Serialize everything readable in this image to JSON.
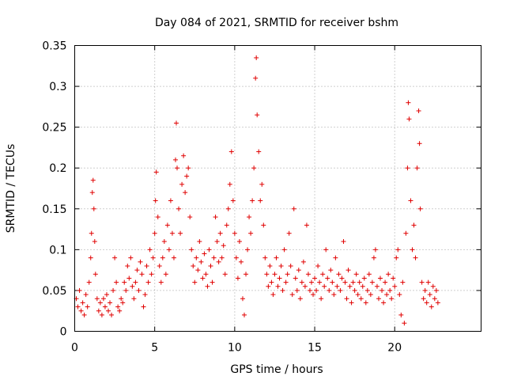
{
  "chart_data": {
    "type": "scatter",
    "title": "Day 084 of 2021, SRMTID for receiver bshm",
    "xlabel": "GPS time / hours",
    "ylabel": "SRMTID / TECUs",
    "xlim": [
      0,
      25.4
    ],
    "ylim": [
      0,
      0.35
    ],
    "xticks": [
      0,
      5,
      10,
      15,
      20
    ],
    "xtick_labels": [
      "0",
      "5",
      "10",
      "15",
      "20"
    ],
    "yticks": [
      0,
      0.05,
      0.1,
      0.15,
      0.2,
      0.25,
      0.3,
      0.35
    ],
    "ytick_labels": [
      "0",
      "0.05",
      "0.1",
      "0.15",
      "0.2",
      "0.25",
      "0.3",
      "0.35"
    ],
    "grid": true,
    "marker": "plus",
    "color": "#e00000",
    "series": [
      {
        "name": "SRMTID",
        "points": [
          [
            0.1,
            0.04
          ],
          [
            0.2,
            0.03
          ],
          [
            0.3,
            0.05
          ],
          [
            0.4,
            0.025
          ],
          [
            0.5,
            0.035
          ],
          [
            0.6,
            0.02
          ],
          [
            0.7,
            0.045
          ],
          [
            0.8,
            0.03
          ],
          [
            0.9,
            0.06
          ],
          [
            1.0,
            0.09
          ],
          [
            1.05,
            0.12
          ],
          [
            1.1,
            0.17
          ],
          [
            1.15,
            0.185
          ],
          [
            1.2,
            0.15
          ],
          [
            1.25,
            0.11
          ],
          [
            1.3,
            0.07
          ],
          [
            1.4,
            0.04
          ],
          [
            1.5,
            0.025
          ],
          [
            1.6,
            0.035
          ],
          [
            1.7,
            0.02
          ],
          [
            1.8,
            0.04
          ],
          [
            1.9,
            0.03
          ],
          [
            2.0,
            0.045
          ],
          [
            2.1,
            0.025
          ],
          [
            2.2,
            0.035
          ],
          [
            2.3,
            0.02
          ],
          [
            2.4,
            0.05
          ],
          [
            2.5,
            0.09
          ],
          [
            2.6,
            0.06
          ],
          [
            2.7,
            0.03
          ],
          [
            2.8,
            0.025
          ],
          [
            2.9,
            0.04
          ],
          [
            3.0,
            0.035
          ],
          [
            3.1,
            0.06
          ],
          [
            3.2,
            0.05
          ],
          [
            3.3,
            0.08
          ],
          [
            3.4,
            0.065
          ],
          [
            3.5,
            0.09
          ],
          [
            3.6,
            0.055
          ],
          [
            3.7,
            0.04
          ],
          [
            3.8,
            0.06
          ],
          [
            3.9,
            0.075
          ],
          [
            4.0,
            0.05
          ],
          [
            4.1,
            0.085
          ],
          [
            4.2,
            0.07
          ],
          [
            4.3,
            0.03
          ],
          [
            4.4,
            0.045
          ],
          [
            4.5,
            0.08
          ],
          [
            4.6,
            0.06
          ],
          [
            4.7,
            0.1
          ],
          [
            4.8,
            0.07
          ],
          [
            4.9,
            0.09
          ],
          [
            5.0,
            0.12
          ],
          [
            5.05,
            0.16
          ],
          [
            5.1,
            0.195
          ],
          [
            5.2,
            0.14
          ],
          [
            5.3,
            0.08
          ],
          [
            5.4,
            0.06
          ],
          [
            5.5,
            0.09
          ],
          [
            5.6,
            0.11
          ],
          [
            5.7,
            0.07
          ],
          [
            5.8,
            0.13
          ],
          [
            5.9,
            0.1
          ],
          [
            6.0,
            0.16
          ],
          [
            6.1,
            0.12
          ],
          [
            6.2,
            0.09
          ],
          [
            6.3,
            0.21
          ],
          [
            6.35,
            0.255
          ],
          [
            6.4,
            0.2
          ],
          [
            6.5,
            0.15
          ],
          [
            6.6,
            0.12
          ],
          [
            6.7,
            0.18
          ],
          [
            6.8,
            0.215
          ],
          [
            6.9,
            0.17
          ],
          [
            7.0,
            0.19
          ],
          [
            7.1,
            0.2
          ],
          [
            7.2,
            0.14
          ],
          [
            7.3,
            0.1
          ],
          [
            7.4,
            0.08
          ],
          [
            7.5,
            0.06
          ],
          [
            7.6,
            0.09
          ],
          [
            7.7,
            0.075
          ],
          [
            7.8,
            0.11
          ],
          [
            7.9,
            0.085
          ],
          [
            8.0,
            0.065
          ],
          [
            8.1,
            0.095
          ],
          [
            8.2,
            0.07
          ],
          [
            8.3,
            0.055
          ],
          [
            8.4,
            0.1
          ],
          [
            8.5,
            0.08
          ],
          [
            8.6,
            0.06
          ],
          [
            8.7,
            0.09
          ],
          [
            8.8,
            0.14
          ],
          [
            8.9,
            0.11
          ],
          [
            9.0,
            0.085
          ],
          [
            9.1,
            0.12
          ],
          [
            9.2,
            0.09
          ],
          [
            9.3,
            0.105
          ],
          [
            9.4,
            0.07
          ],
          [
            9.5,
            0.13
          ],
          [
            9.6,
            0.15
          ],
          [
            9.7,
            0.18
          ],
          [
            9.8,
            0.22
          ],
          [
            9.9,
            0.16
          ],
          [
            10.0,
            0.12
          ],
          [
            10.1,
            0.09
          ],
          [
            10.2,
            0.065
          ],
          [
            10.3,
            0.11
          ],
          [
            10.4,
            0.085
          ],
          [
            10.5,
            0.04
          ],
          [
            10.6,
            0.02
          ],
          [
            10.7,
            0.07
          ],
          [
            10.8,
            0.1
          ],
          [
            10.9,
            0.14
          ],
          [
            11.0,
            0.12
          ],
          [
            11.1,
            0.16
          ],
          [
            11.2,
            0.2
          ],
          [
            11.3,
            0.31
          ],
          [
            11.35,
            0.335
          ],
          [
            11.4,
            0.265
          ],
          [
            11.5,
            0.22
          ],
          [
            11.6,
            0.16
          ],
          [
            11.7,
            0.18
          ],
          [
            11.8,
            0.13
          ],
          [
            11.9,
            0.09
          ],
          [
            12.0,
            0.07
          ],
          [
            12.1,
            0.055
          ],
          [
            12.2,
            0.08
          ],
          [
            12.3,
            0.06
          ],
          [
            12.4,
            0.045
          ],
          [
            12.5,
            0.07
          ],
          [
            12.6,
            0.09
          ],
          [
            12.7,
            0.055
          ],
          [
            12.8,
            0.065
          ],
          [
            12.9,
            0.08
          ],
          [
            13.0,
            0.05
          ],
          [
            13.1,
            0.1
          ],
          [
            13.2,
            0.06
          ],
          [
            13.3,
            0.07
          ],
          [
            13.4,
            0.12
          ],
          [
            13.5,
            0.08
          ],
          [
            13.6,
            0.045
          ],
          [
            13.7,
            0.15
          ],
          [
            13.8,
            0.065
          ],
          [
            13.9,
            0.05
          ],
          [
            14.0,
            0.075
          ],
          [
            14.1,
            0.04
          ],
          [
            14.2,
            0.06
          ],
          [
            14.3,
            0.085
          ],
          [
            14.4,
            0.055
          ],
          [
            14.5,
            0.13
          ],
          [
            14.6,
            0.07
          ],
          [
            14.7,
            0.05
          ],
          [
            14.8,
            0.06
          ],
          [
            14.9,
            0.045
          ],
          [
            15.0,
            0.065
          ],
          [
            15.1,
            0.05
          ],
          [
            15.2,
            0.08
          ],
          [
            15.3,
            0.06
          ],
          [
            15.4,
            0.04
          ],
          [
            15.5,
            0.07
          ],
          [
            15.6,
            0.055
          ],
          [
            15.7,
            0.1
          ],
          [
            15.8,
            0.065
          ],
          [
            15.9,
            0.05
          ],
          [
            16.0,
            0.075
          ],
          [
            16.1,
            0.06
          ],
          [
            16.2,
            0.045
          ],
          [
            16.3,
            0.09
          ],
          [
            16.4,
            0.055
          ],
          [
            16.5,
            0.07
          ],
          [
            16.6,
            0.05
          ],
          [
            16.7,
            0.065
          ],
          [
            16.8,
            0.11
          ],
          [
            16.9,
            0.06
          ],
          [
            17.0,
            0.04
          ],
          [
            17.1,
            0.075
          ],
          [
            17.2,
            0.055
          ],
          [
            17.3,
            0.035
          ],
          [
            17.4,
            0.06
          ],
          [
            17.5,
            0.05
          ],
          [
            17.6,
            0.07
          ],
          [
            17.7,
            0.045
          ],
          [
            17.8,
            0.06
          ],
          [
            17.9,
            0.04
          ],
          [
            18.0,
            0.055
          ],
          [
            18.1,
            0.065
          ],
          [
            18.2,
            0.035
          ],
          [
            18.3,
            0.05
          ],
          [
            18.4,
            0.07
          ],
          [
            18.5,
            0.045
          ],
          [
            18.6,
            0.06
          ],
          [
            18.7,
            0.09
          ],
          [
            18.8,
            0.1
          ],
          [
            18.9,
            0.055
          ],
          [
            19.0,
            0.04
          ],
          [
            19.1,
            0.065
          ],
          [
            19.2,
            0.05
          ],
          [
            19.3,
            0.035
          ],
          [
            19.4,
            0.06
          ],
          [
            19.5,
            0.045
          ],
          [
            19.6,
            0.07
          ],
          [
            19.7,
            0.05
          ],
          [
            19.8,
            0.04
          ],
          [
            19.9,
            0.065
          ],
          [
            20.0,
            0.055
          ],
          [
            20.1,
            0.09
          ],
          [
            20.2,
            0.1
          ],
          [
            20.3,
            0.045
          ],
          [
            20.4,
            0.02
          ],
          [
            20.5,
            0.06
          ],
          [
            20.6,
            0.01
          ],
          [
            20.7,
            0.12
          ],
          [
            20.8,
            0.2
          ],
          [
            20.85,
            0.28
          ],
          [
            20.9,
            0.26
          ],
          [
            21.0,
            0.16
          ],
          [
            21.1,
            0.1
          ],
          [
            21.2,
            0.13
          ],
          [
            21.3,
            0.09
          ],
          [
            21.4,
            0.2
          ],
          [
            21.5,
            0.27
          ],
          [
            21.55,
            0.23
          ],
          [
            21.6,
            0.15
          ],
          [
            21.7,
            0.06
          ],
          [
            21.8,
            0.04
          ],
          [
            21.9,
            0.05
          ],
          [
            22.0,
            0.035
          ],
          [
            22.1,
            0.06
          ],
          [
            22.2,
            0.045
          ],
          [
            22.3,
            0.03
          ],
          [
            22.4,
            0.055
          ],
          [
            22.5,
            0.04
          ],
          [
            22.6,
            0.05
          ],
          [
            22.7,
            0.035
          ]
        ]
      }
    ]
  }
}
